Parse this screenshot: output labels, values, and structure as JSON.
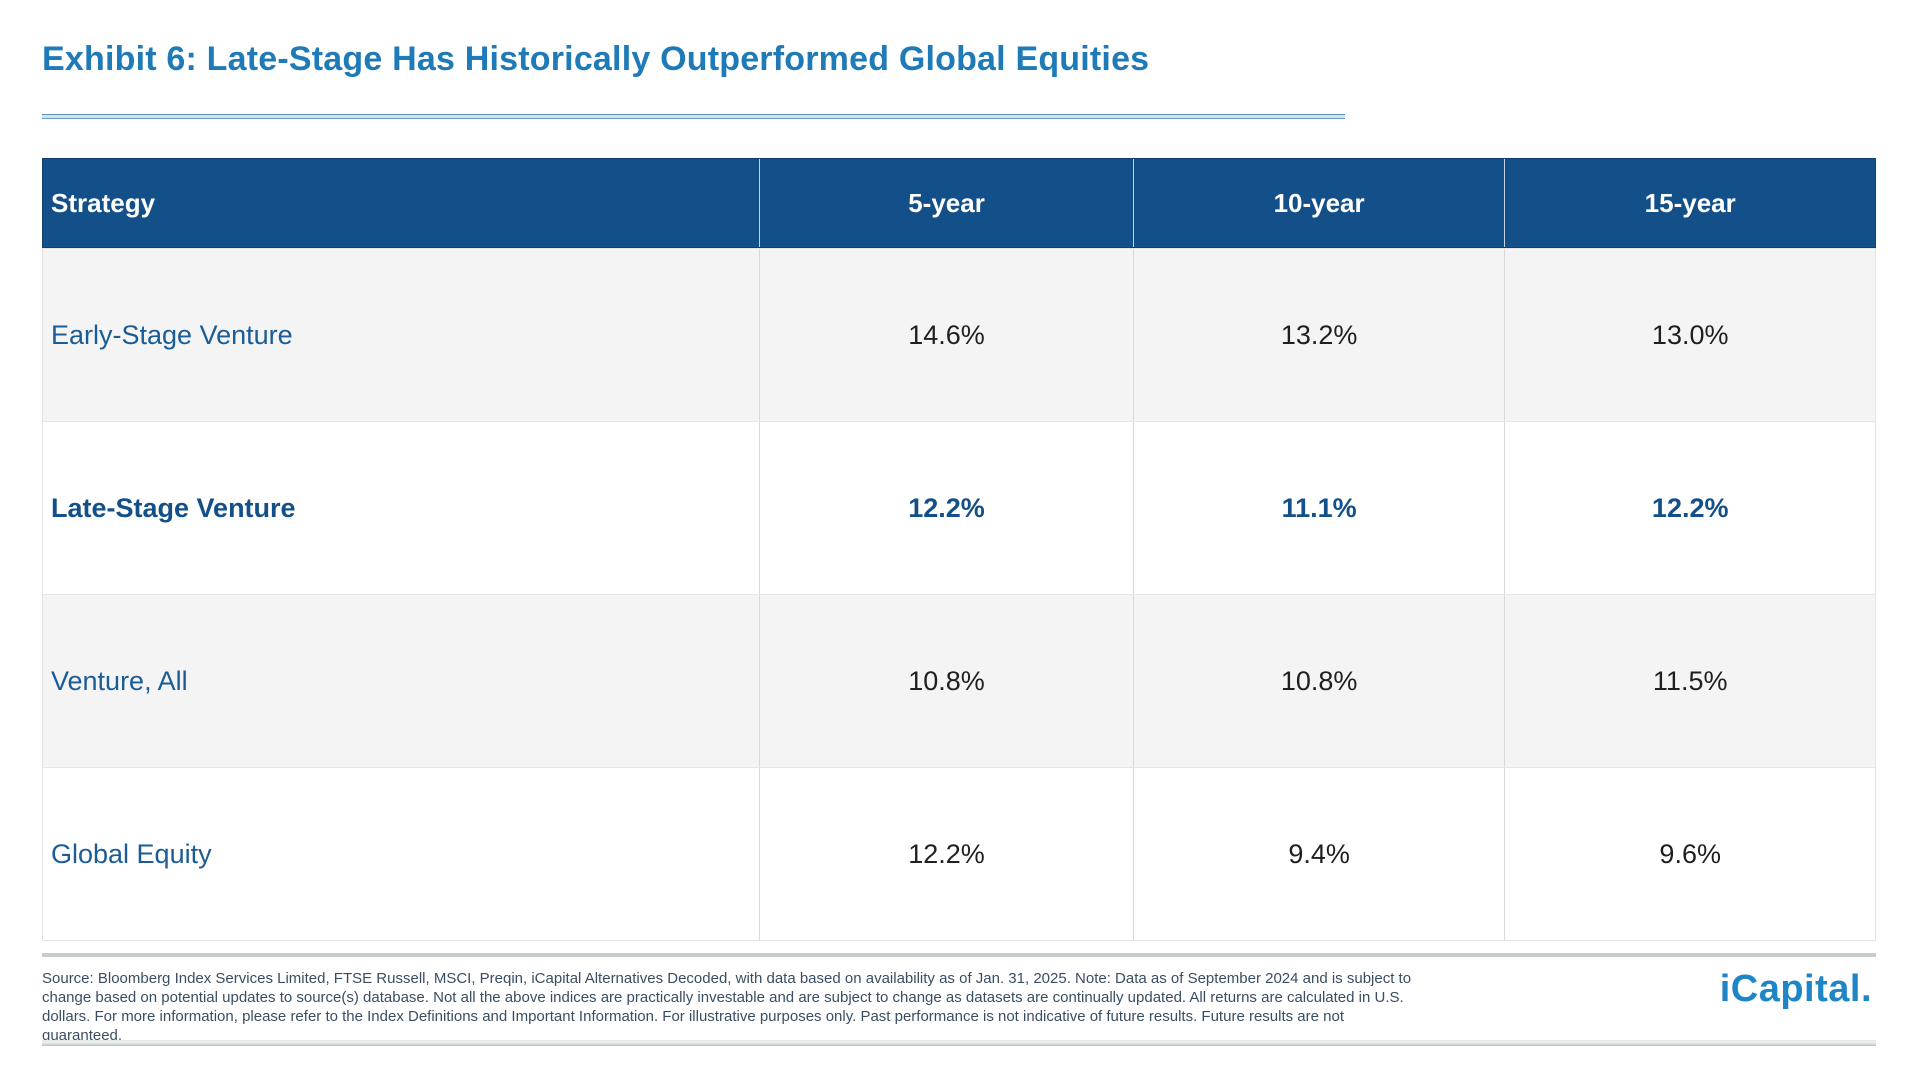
{
  "title": "Exhibit 6: Late-Stage Has Historically Outperformed Global Equities",
  "colors": {
    "header_bg": "#134f88",
    "title_blue": "#1f7ab8",
    "strategy_blue": "#1a5c96",
    "highlight_blue": "#134f88",
    "value_dark": "#1f1f1f",
    "row_alt_bg": "#f4f4f4",
    "logo_blue": "#1e86c6"
  },
  "table": {
    "headers": [
      "Strategy",
      "5-year",
      "10-year",
      "15-year"
    ],
    "rows": [
      {
        "strategy": "Early-Stage Venture",
        "values": [
          "14.6%",
          "13.2%",
          "13.0%"
        ],
        "highlight": false
      },
      {
        "strategy": "Late-Stage Venture",
        "values": [
          "12.2%",
          "11.1%",
          "12.2%"
        ],
        "highlight": true
      },
      {
        "strategy": "Venture, All",
        "values": [
          "10.8%",
          "10.8%",
          "11.5%"
        ],
        "highlight": false
      },
      {
        "strategy": "Global Equity",
        "values": [
          "12.2%",
          "9.4%",
          "9.6%"
        ],
        "highlight": false
      }
    ]
  },
  "footer": {
    "source_note": "Source: Bloomberg Index Services Limited, FTSE Russell, MSCI, Preqin, iCapital Alternatives Decoded, with data based on availability as of Jan. 31, 2025. Note: Data as of September 2024 and is subject to change based on potential updates to source(s) database. Not all the above indices are practically investable and are subject to change as datasets are continually updated. All returns are calculated in U.S. dollars. For more information, please refer to the Index Definitions and Important Information. For illustrative purposes only. Past performance is not indicative of future results. Future results are not guaranteed.",
    "logo_text": "iCapital",
    "logo_mark": "."
  }
}
